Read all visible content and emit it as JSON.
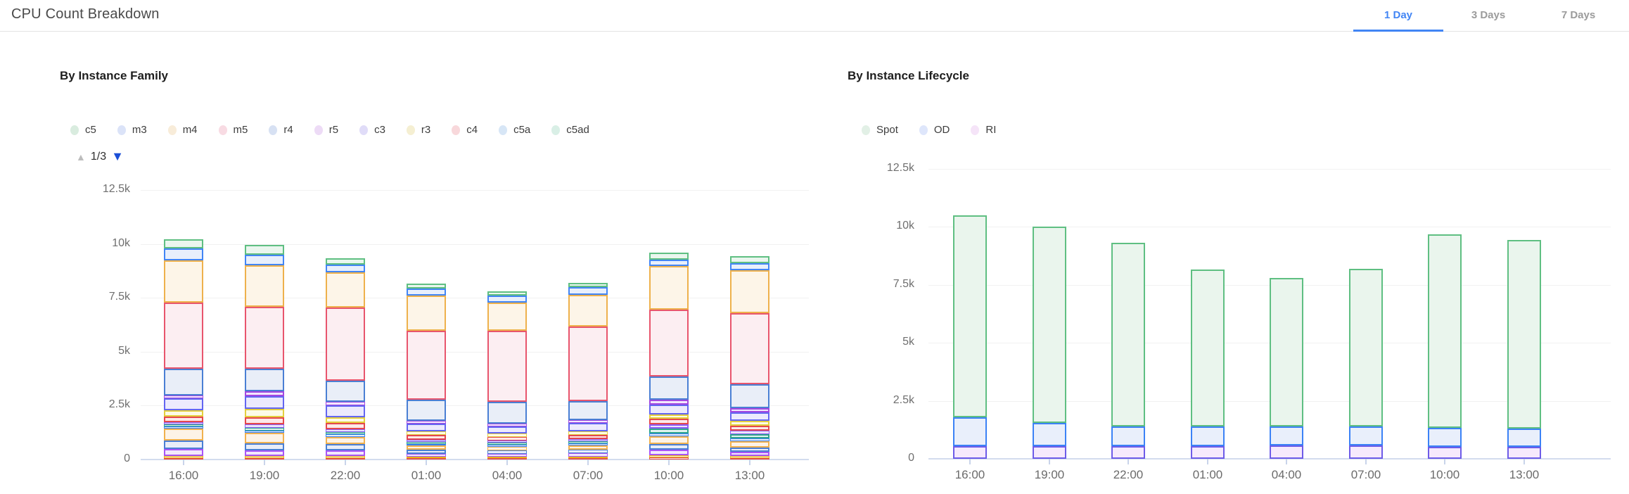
{
  "header": {
    "title": "CPU Count Breakdown",
    "tabs": [
      {
        "label": "1 Day",
        "active": true
      },
      {
        "label": "3 Days",
        "active": false
      },
      {
        "label": "7 Days",
        "active": false
      }
    ],
    "active_tab_color": "#4285f4",
    "inactive_tab_color": "#9b9b9b"
  },
  "chart_data": [
    {
      "type": "bar",
      "stacked": true,
      "title": "By Instance Family",
      "pager": {
        "up": "▲",
        "label": "1/3",
        "down": "▼"
      },
      "categories": [
        "16:00",
        "19:00",
        "22:00",
        "01:00",
        "04:00",
        "07:00",
        "10:00",
        "13:00"
      ],
      "ylabels": [
        "12.5k",
        "10k",
        "7.5k",
        "5k",
        "2.5k",
        "0"
      ],
      "ylim": [
        0,
        12500
      ],
      "grid": true,
      "legend_position": "top",
      "legend": [
        {
          "label": "c5",
          "dot": "#d9ecdf"
        },
        {
          "label": "m3",
          "dot": "#dbe3f8"
        },
        {
          "label": "m4",
          "dot": "#f8ecd9"
        },
        {
          "label": "m5",
          "dot": "#f8dbe3"
        },
        {
          "label": "r4",
          "dot": "#d7e1f3"
        },
        {
          "label": "r5",
          "dot": "#eddbf6"
        },
        {
          "label": "c3",
          "dot": "#e0dcf8"
        },
        {
          "label": "r3",
          "dot": "#f5efd2"
        },
        {
          "label": "c4",
          "dot": "#f8d8db"
        },
        {
          "label": "c5a",
          "dot": "#d7e6f6"
        },
        {
          "label": "c5ad",
          "dot": "#d9efe6"
        }
      ],
      "palette": {
        "other-red": {
          "s": "#e5534b",
          "f": "#fbe0e0"
        },
        "other-yellow": {
          "s": "#e7b416",
          "f": "#fdf7dd"
        },
        "other-magenta": {
          "s": "#a855f7",
          "f": "#f3e8fd"
        },
        "other-bluegray": {
          "s": "#4a7fd4",
          "f": "#e8edf8"
        },
        "other-amber": {
          "s": "#f0b14e",
          "f": "#fdf3e7"
        },
        "other-blue": {
          "s": "#3b82f6",
          "f": "#e3edfc"
        },
        "other-teal": {
          "s": "#2fa48e",
          "f": "#e0f3ee"
        },
        "other-purple": {
          "s": "#8b5cf6",
          "f": "#ece4fc"
        },
        "c4": {
          "s": "#e5484d",
          "f": "#fce9ea"
        },
        "r3": {
          "s": "#e3cf3e",
          "f": "#fdfbe8"
        },
        "c3": {
          "s": "#6366f1",
          "f": "#eceafd"
        },
        "r5": {
          "s": "#a348e0",
          "f": "#f3e8fd"
        },
        "r4": {
          "s": "#4a7fd4",
          "f": "#e9eef8"
        },
        "m5": {
          "s": "#e8556d",
          "f": "#fceef2"
        },
        "m4": {
          "s": "#eeb14c",
          "f": "#fdf5e8"
        },
        "m3": {
          "s": "#4285f4",
          "f": "#e8effc"
        },
        "c5": {
          "s": "#5fbf82",
          "f": "#eaf6ee"
        }
      },
      "stack_order": [
        "other-red",
        "other-yellow",
        "other-magenta",
        "other-bluegray",
        "other-amber",
        "other-blue",
        "other-teal",
        "other-purple",
        "c4",
        "r3",
        "c3",
        "r5",
        "r4",
        "m5",
        "m4",
        "m3",
        "c5"
      ],
      "bars_unit": "thousands",
      "bars": [
        [
          0.07,
          0.1,
          0.31,
          0.39,
          0.55,
          0.1,
          0.1,
          0.1,
          0.26,
          0.3,
          0.55,
          0.14,
          1.25,
          3.05,
          1.95,
          0.58,
          0.4
        ],
        [
          0.07,
          0.09,
          0.25,
          0.33,
          0.5,
          0.11,
          0.13,
          0.14,
          0.33,
          0.4,
          0.6,
          0.2,
          1.07,
          2.85,
          1.95,
          0.48,
          0.45
        ],
        [
          0.07,
          0.09,
          0.25,
          0.3,
          0.35,
          0.1,
          0.12,
          0.13,
          0.3,
          0.25,
          0.55,
          0.15,
          1.0,
          3.4,
          1.63,
          0.36,
          0.3
        ],
        [
          0.05,
          0.07,
          0.15,
          0.18,
          0.2,
          0.08,
          0.1,
          0.1,
          0.2,
          0.18,
          0.35,
          0.12,
          1.0,
          3.2,
          1.62,
          0.34,
          0.21
        ],
        [
          0.05,
          0.07,
          0.14,
          0.16,
          0.18,
          0.08,
          0.1,
          0.1,
          0.18,
          0.16,
          0.33,
          0.12,
          1.0,
          3.3,
          1.3,
          0.33,
          0.2
        ],
        [
          0.05,
          0.07,
          0.16,
          0.18,
          0.2,
          0.08,
          0.1,
          0.1,
          0.2,
          0.16,
          0.4,
          0.14,
          0.88,
          3.46,
          1.45,
          0.35,
          0.22
        ],
        [
          0.1,
          0.1,
          0.25,
          0.28,
          0.35,
          0.12,
          0.25,
          0.18,
          0.25,
          0.2,
          0.45,
          0.23,
          1.1,
          3.1,
          2.0,
          0.32,
          0.3
        ],
        [
          0.08,
          0.08,
          0.2,
          0.2,
          0.3,
          0.12,
          0.2,
          0.15,
          0.25,
          0.2,
          0.4,
          0.2,
          1.1,
          3.3,
          2.0,
          0.33,
          0.33
        ]
      ],
      "totals_k": [
        10.2,
        9.95,
        9.3,
        8.15,
        7.8,
        8.2,
        9.6,
        9.45
      ]
    },
    {
      "type": "bar",
      "stacked": true,
      "title": "By Instance Lifecycle",
      "categories": [
        "16:00",
        "19:00",
        "22:00",
        "01:00",
        "04:00",
        "07:00",
        "10:00",
        "13:00"
      ],
      "ylabels": [
        "12.5k",
        "10k",
        "7.5k",
        "5k",
        "2.5k",
        "0"
      ],
      "ylim": [
        0,
        12500
      ],
      "grid": true,
      "legend_position": "top",
      "legend": [
        {
          "label": "Spot",
          "dot": "#e2f0e6"
        },
        {
          "label": "OD",
          "dot": "#dee6fb"
        },
        {
          "label": "RI",
          "dot": "#f5e4f8"
        }
      ],
      "palette": {
        "RI": {
          "s": "#6d5ce8",
          "f": "#f6e9fc"
        },
        "OD": {
          "s": "#3b82f6",
          "f": "#e9effb"
        },
        "Spot": {
          "s": "#5fbf82",
          "f": "#eaf5ed"
        }
      },
      "stack_order": [
        "RI",
        "OD",
        "Spot"
      ],
      "bars_unit": "thousands",
      "bars": [
        [
          0.55,
          1.25,
          8.7
        ],
        [
          0.55,
          1.0,
          8.45
        ],
        [
          0.55,
          0.85,
          7.9
        ],
        [
          0.55,
          0.85,
          6.75
        ],
        [
          0.58,
          0.82,
          6.4
        ],
        [
          0.58,
          0.82,
          6.8
        ],
        [
          0.52,
          0.83,
          8.32
        ],
        [
          0.52,
          0.78,
          8.15
        ]
      ],
      "totals_k": [
        10.5,
        10.0,
        9.3,
        8.15,
        7.8,
        8.2,
        9.67,
        9.45
      ]
    }
  ],
  "axis_colors": {
    "baseline": "#d3dcee",
    "gridline": "#f1f1f1",
    "tick": "#c9d4ea",
    "ylabel": "#6f6f6f",
    "xlabel": "#6b6b6b"
  }
}
